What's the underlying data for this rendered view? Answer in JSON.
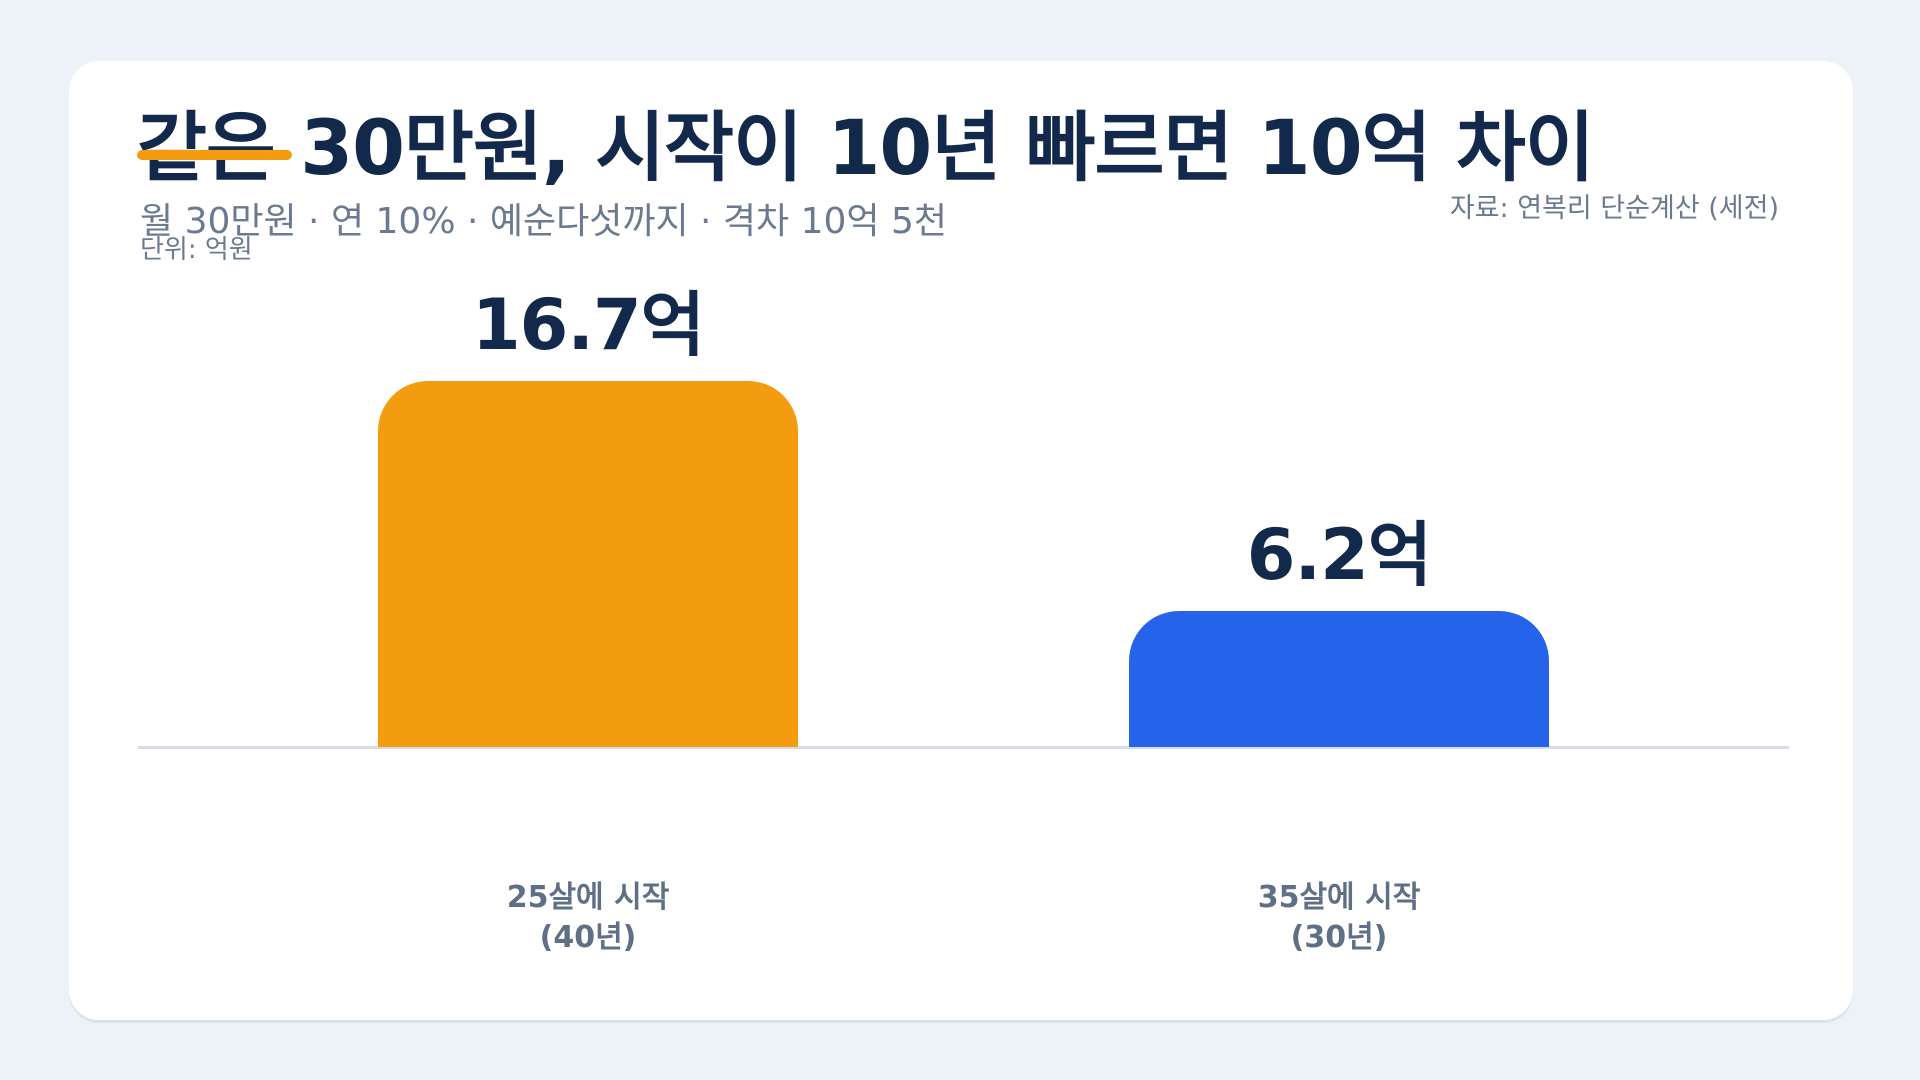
{
  "chart_data": {
    "type": "bar",
    "title": "같은 30만원, 시작이 10년 빠르면 10억 차이",
    "subtitle": "월 30만원 · 연 10% · 예순다섯까지 · 격차 10억 5천",
    "unit_label": "단위: 억원",
    "source": "자료: 연복리 단순계산 (세전)",
    "categories": [
      "25살에 시작\n(40년)",
      "35살에 시작\n(30년)"
    ],
    "values": [
      16.7,
      6.2
    ],
    "value_labels": [
      "16.7억",
      "6.2억"
    ],
    "colors": [
      "#f39c0f",
      "#2563eb"
    ]
  }
}
